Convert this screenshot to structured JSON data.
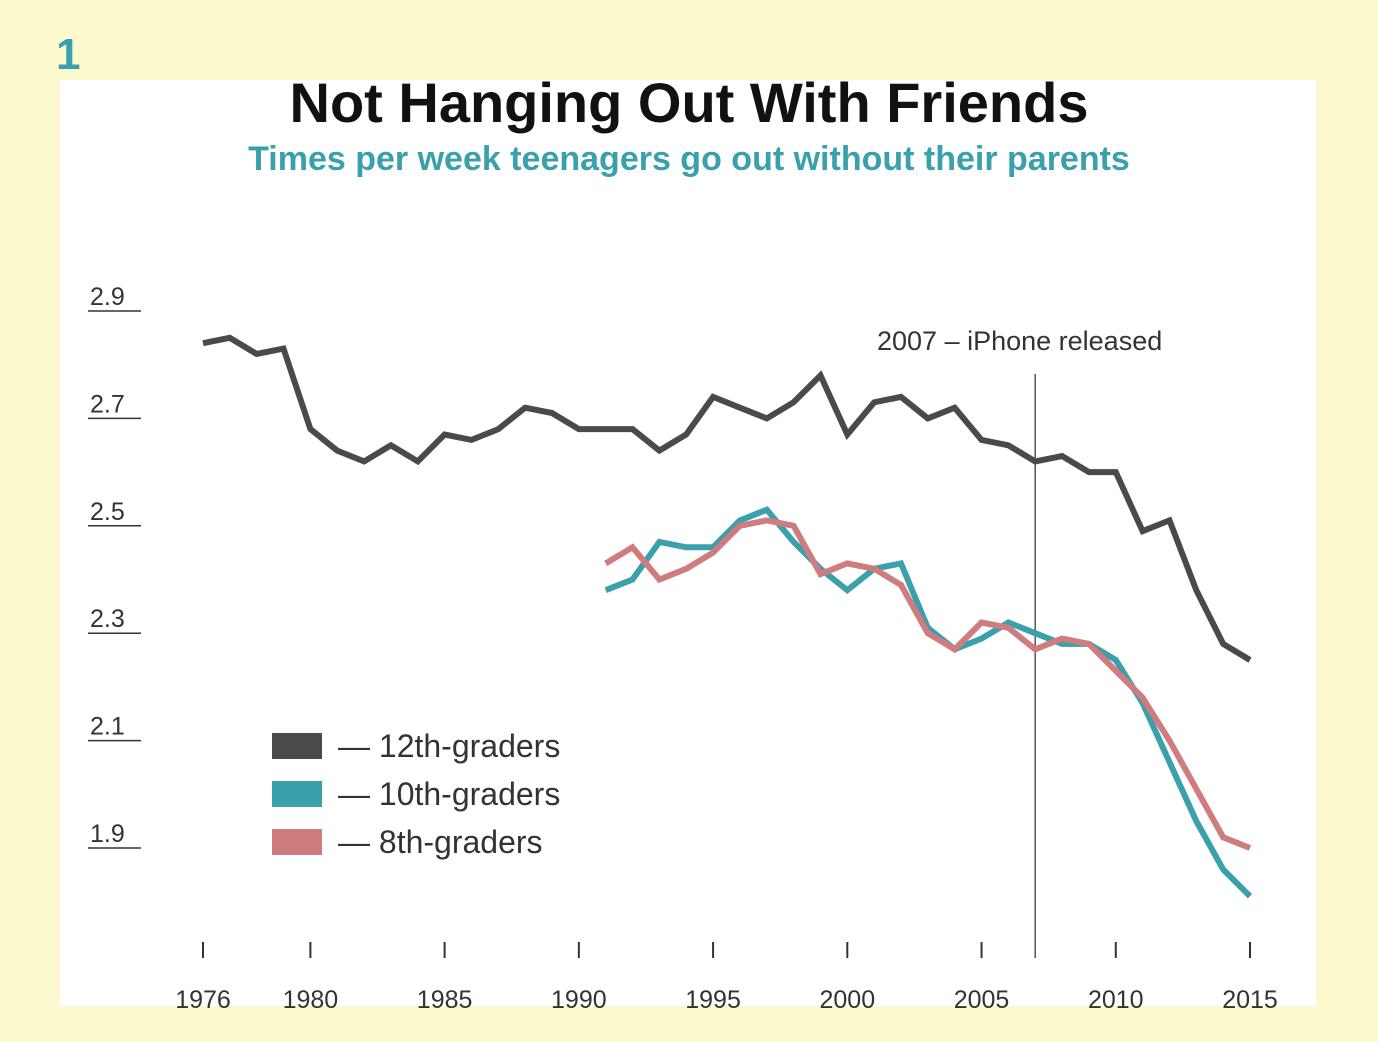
{
  "figure_number": "1",
  "chart_data": {
    "type": "line",
    "title": "Not Hanging Out With Friends",
    "subtitle": "Times per week teenagers go out without their parents",
    "xlabel": "",
    "ylabel": "",
    "x_ticks": [
      1976,
      1980,
      1985,
      1990,
      1995,
      2000,
      2005,
      2010,
      2015
    ],
    "y_ticks": [
      "2.9",
      "2.7",
      "2.5",
      "2.3",
      "2.1",
      "1.9"
    ],
    "ylim": [
      1.77,
      2.9
    ],
    "xlim": [
      1976,
      2015
    ],
    "grid": false,
    "legend_position": "bottom-left",
    "annotation": {
      "x": 2007,
      "label": "2007 – iPhone released"
    },
    "series": [
      {
        "name": "12th-graders",
        "color": "#4a4a4a",
        "x": [
          1976,
          1977,
          1978,
          1979,
          1980,
          1981,
          1982,
          1983,
          1984,
          1985,
          1986,
          1987,
          1988,
          1989,
          1990,
          1991,
          1992,
          1993,
          1994,
          1995,
          1996,
          1997,
          1998,
          1999,
          2000,
          2001,
          2002,
          2003,
          2004,
          2005,
          2006,
          2007,
          2008,
          2009,
          2010,
          2011,
          2012,
          2013,
          2014,
          2015
        ],
        "values": [
          2.84,
          2.85,
          2.82,
          2.83,
          2.68,
          2.64,
          2.62,
          2.65,
          2.62,
          2.67,
          2.66,
          2.68,
          2.72,
          2.71,
          2.68,
          2.68,
          2.68,
          2.64,
          2.67,
          2.74,
          2.72,
          2.7,
          2.73,
          2.78,
          2.67,
          2.73,
          2.74,
          2.7,
          2.72,
          2.66,
          2.65,
          2.62,
          2.63,
          2.6,
          2.6,
          2.49,
          2.51,
          2.38,
          2.28,
          2.25
        ]
      },
      {
        "name": "10th-graders",
        "color": "#3aa0ab",
        "x": [
          1991,
          1992,
          1993,
          1994,
          1995,
          1996,
          1997,
          1998,
          1999,
          2000,
          2001,
          2002,
          2003,
          2004,
          2005,
          2006,
          2007,
          2008,
          2009,
          2010,
          2011,
          2012,
          2013,
          2014,
          2015
        ],
        "values": [
          2.38,
          2.4,
          2.47,
          2.46,
          2.46,
          2.51,
          2.53,
          2.47,
          2.42,
          2.38,
          2.42,
          2.43,
          2.31,
          2.27,
          2.29,
          2.32,
          2.3,
          2.28,
          2.28,
          2.25,
          2.17,
          2.06,
          1.95,
          1.86,
          1.81
        ]
      },
      {
        "name": "8th-graders",
        "color": "#cf7c7f",
        "x": [
          1991,
          1992,
          1993,
          1994,
          1995,
          1996,
          1997,
          1998,
          1999,
          2000,
          2001,
          2002,
          2003,
          2004,
          2005,
          2006,
          2007,
          2008,
          2009,
          2010,
          2011,
          2012,
          2013,
          2014,
          2015
        ],
        "values": [
          2.43,
          2.46,
          2.4,
          2.42,
          2.45,
          2.5,
          2.51,
          2.5,
          2.41,
          2.43,
          2.42,
          2.39,
          2.3,
          2.27,
          2.32,
          2.31,
          2.27,
          2.29,
          2.28,
          2.23,
          2.18,
          2.1,
          2.01,
          1.92,
          1.9
        ]
      }
    ]
  },
  "legend": {
    "items": [
      {
        "label": "— 12th-graders",
        "color": "#4a4a4a"
      },
      {
        "label": "— 10th-graders",
        "color": "#3aa0ab"
      },
      {
        "label": "— 8th-graders",
        "color": "#cf7c7f"
      }
    ]
  }
}
